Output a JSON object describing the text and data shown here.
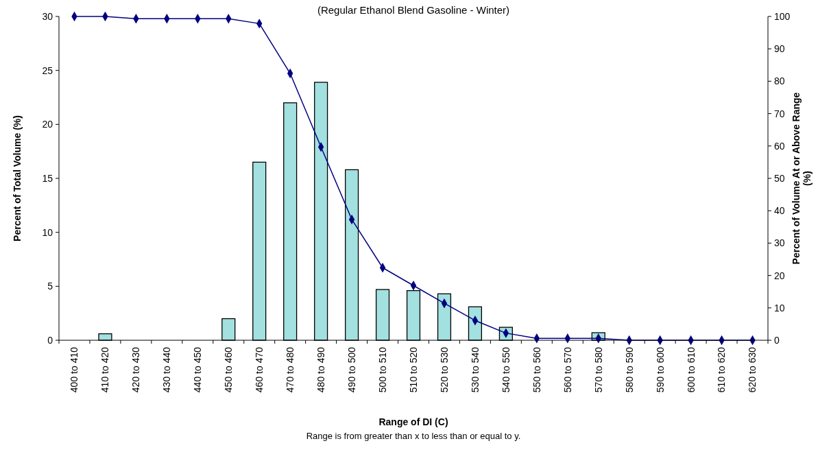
{
  "chart_data": {
    "type": "bar",
    "subtitle": "(Regular Ethanol Blend Gasoline - Winter)",
    "xlabel": "Range of DI (C)",
    "ylabel": "Percent of Total Volume (%)",
    "y2label": "Percent of Volume At or Above Range\n(%)",
    "annotations": [
      "Range is from greater than x to less than or equal to y."
    ],
    "categories": [
      "400 to 410",
      "410 to 420",
      "420 to 430",
      "430 to 440",
      "440 to 450",
      "450 to 460",
      "460 to 470",
      "470 to 480",
      "480 to 490",
      "490 to 500",
      "500 to 510",
      "510 to 520",
      "520 to 530",
      "530 to 540",
      "540 to 550",
      "550 to 560",
      "560 to 570",
      "570 to 580",
      "580 to 590",
      "590 to 600",
      "600 to 610",
      "610 to 620",
      "620 to 630"
    ],
    "series": [
      {
        "color": "#a3e0e0",
        "values": [
          0,
          0.6,
          0,
          0,
          0,
          2.0,
          16.5,
          22.0,
          23.9,
          15.8,
          4.7,
          4.6,
          4.3,
          3.1,
          1.2,
          0,
          0,
          0.7,
          0,
          0,
          0,
          0,
          0
        ]
      },
      {
        "type": "line",
        "axis": "y2",
        "color": "#000080",
        "marker": "diamond",
        "values": [
          100,
          100,
          99.3,
          99.3,
          99.3,
          99.3,
          97.8,
          82.4,
          59.7,
          37.3,
          22.4,
          16.9,
          11.4,
          6.1,
          2.2,
          0.6,
          0.6,
          0.6,
          0,
          0,
          0,
          0,
          0
        ]
      }
    ],
    "ylim": [
      0,
      30
    ],
    "yticks": [
      0,
      5,
      10,
      15,
      20,
      25,
      30
    ],
    "y2lim": [
      0,
      100
    ],
    "y2ticks": [
      0,
      10,
      20,
      30,
      40,
      50,
      60,
      70,
      80,
      90,
      100
    ],
    "grid": false
  }
}
